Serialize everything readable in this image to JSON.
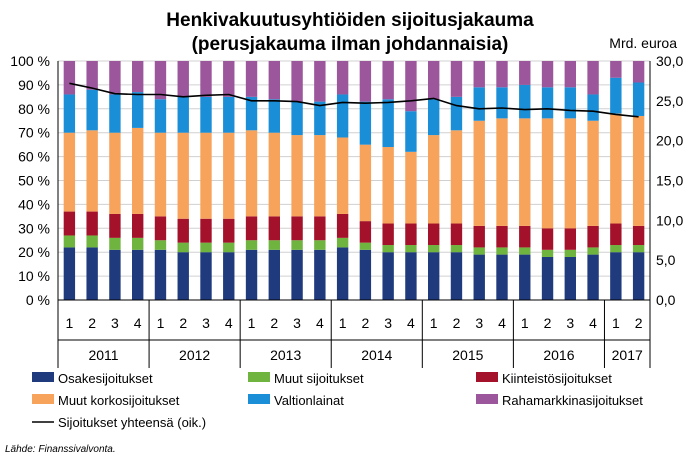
{
  "chart_data": {
    "type": "bar",
    "stacked": true,
    "title_line1": "Henkivakuutusyhtiöiden sijoitusjakauma",
    "title_line2": "(perusjakauma ilman johdannaisia)",
    "y2_unit": "Mrd. euroa",
    "source": "Lähde: Finanssivalvonta.",
    "y_ticks": [
      "0 %",
      "10 %",
      "20 %",
      "30 %",
      "40 %",
      "50 %",
      "60 %",
      "70 %",
      "80 %",
      "90 %",
      "100 %"
    ],
    "y2_ticks": [
      "0,0",
      "5,0",
      "10,0",
      "15,0",
      "20,0",
      "25,0",
      "30,0"
    ],
    "ylim": [
      0,
      100
    ],
    "y2lim": [
      0,
      30
    ],
    "categories": [
      "1",
      "2",
      "3",
      "4",
      "1",
      "2",
      "3",
      "4",
      "1",
      "2",
      "3",
      "4",
      "1",
      "2",
      "3",
      "4",
      "1",
      "2",
      "3",
      "4",
      "1",
      "2",
      "3",
      "4",
      "1",
      "2"
    ],
    "years": [
      {
        "label": "2011",
        "count": 4
      },
      {
        "label": "2012",
        "count": 4
      },
      {
        "label": "2013",
        "count": 4
      },
      {
        "label": "2014",
        "count": 4
      },
      {
        "label": "2015",
        "count": 4
      },
      {
        "label": "2016",
        "count": 4
      },
      {
        "label": "2017",
        "count": 2
      }
    ],
    "series": [
      {
        "name": "Osakesijoitukset",
        "color": "#1f3a7d",
        "values": [
          22,
          22,
          21,
          21,
          21,
          20,
          20,
          20,
          21,
          21,
          21,
          21,
          22,
          21,
          20,
          20,
          20,
          20,
          19,
          19,
          19,
          18,
          18,
          19,
          20,
          20
        ]
      },
      {
        "name": "Muut sijoitukset",
        "color": "#6fb43f",
        "values": [
          5,
          5,
          5,
          5,
          4,
          4,
          4,
          4,
          4,
          4,
          4,
          4,
          4,
          3,
          3,
          3,
          3,
          3,
          3,
          3,
          3,
          3,
          3,
          3,
          3,
          3
        ]
      },
      {
        "name": "Kiinteistösijoitukset",
        "color": "#a3122a",
        "values": [
          10,
          10,
          10,
          10,
          10,
          10,
          10,
          10,
          10,
          10,
          10,
          10,
          10,
          9,
          9,
          9,
          9,
          9,
          9,
          9,
          9,
          9,
          9,
          9,
          9,
          8
        ]
      },
      {
        "name": "Muut korkosijoitukset",
        "color": "#f7a35c",
        "values": [
          33,
          34,
          34,
          36,
          35,
          36,
          36,
          36,
          36,
          35,
          34,
          34,
          32,
          32,
          32,
          30,
          37,
          39,
          44,
          45,
          45,
          46,
          46,
          44,
          46,
          46
        ]
      },
      {
        "name": "Valtionlainat",
        "color": "#1b8ed8",
        "values": [
          16,
          17,
          16,
          15,
          14,
          15,
          15,
          15,
          14,
          14,
          14,
          14,
          18,
          18,
          20,
          17,
          15,
          14,
          14,
          13,
          14,
          13,
          13,
          11,
          15,
          14
        ]
      },
      {
        "name": "Rahamarkkinasijoitukset",
        "color": "#9b569c",
        "values": [
          14,
          12,
          14,
          13,
          16,
          15,
          15,
          15,
          15,
          16,
          17,
          17,
          14,
          17,
          16,
          21,
          16,
          15,
          11,
          11,
          10,
          11,
          11,
          14,
          7,
          9
        ]
      }
    ],
    "line_series": {
      "name": "Sijoitukset yhteensä (oik.)",
      "color": "#000000",
      "axis": "right",
      "values": [
        27.2,
        26.6,
        25.9,
        25.8,
        25.8,
        25.5,
        25.7,
        25.8,
        25.0,
        25.0,
        24.9,
        24.4,
        24.8,
        24.7,
        24.8,
        25.0,
        25.3,
        24.4,
        24.0,
        24.1,
        23.9,
        24.0,
        23.8,
        23.7,
        23.3,
        23.0
      ]
    }
  },
  "legend": {
    "items": [
      {
        "name": "Osakesijoitukset",
        "color": "#1f3a7d",
        "kind": "swatch"
      },
      {
        "name": "Muut sijoitukset",
        "color": "#6fb43f",
        "kind": "swatch"
      },
      {
        "name": "Kiinteistösijoitukset",
        "color": "#a3122a",
        "kind": "swatch"
      },
      {
        "name": "Muut korkosijoitukset",
        "color": "#f7a35c",
        "kind": "swatch"
      },
      {
        "name": "Valtionlainat",
        "color": "#1b8ed8",
        "kind": "swatch"
      },
      {
        "name": "Rahamarkkinasijoitukset",
        "color": "#9b569c",
        "kind": "swatch"
      },
      {
        "name": "Sijoitukset yhteensä (oik.)",
        "color": "#000000",
        "kind": "line"
      }
    ]
  }
}
